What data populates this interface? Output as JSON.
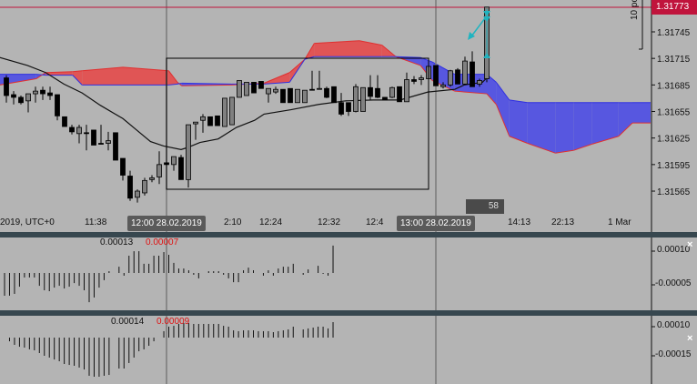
{
  "colors": {
    "background": "#b4b4b4",
    "cloud_bull": "#5757e0",
    "cloud_bear": "#e05555",
    "bull_candle": "#808080",
    "bear_candle": "#000000",
    "price_line": "#c0143c",
    "arrow": "#20b4c0",
    "separator": "#37474f"
  },
  "main": {
    "current_price_label": "1.31773",
    "ruler_label": "10 po",
    "bar_timer": "58",
    "crosshair_tips": [
      "12:00 28.02.2019",
      "13:00 28.02.2019"
    ],
    "x_labels": [
      "2019, UTC+0",
      "11:38",
      "2:10",
      "12:24",
      "12:32",
      "12:4",
      "14:13",
      "22:13",
      "1 Mar"
    ]
  },
  "panel1": {
    "value_a": "0.00013",
    "value_b": "0.00007",
    "y_labels": [
      "0.00010",
      "-0.00005"
    ]
  },
  "panel2": {
    "value_a": "0.00014",
    "value_b": "0.00009",
    "y_labels": [
      "0.00010",
      "-0.00015"
    ]
  },
  "chart_data": [
    {
      "type": "candlestick",
      "y_ticks": [
        "1.31745",
        "1.31715",
        "1.31685",
        "1.31655",
        "1.31625",
        "1.31595",
        "1.31565"
      ],
      "ylim": [
        1.31545,
        1.3178
      ],
      "current_price": 1.31773,
      "candles": [
        [
          1.31693,
          1.31696,
          1.31665,
          1.31673
        ],
        [
          1.31674,
          1.31678,
          1.31663,
          1.31671
        ],
        [
          1.31671,
          1.31673,
          1.31663,
          1.31665
        ],
        [
          1.31667,
          1.31675,
          1.31654,
          1.31675
        ],
        [
          1.31675,
          1.31683,
          1.31665,
          1.31678
        ],
        [
          1.31679,
          1.31683,
          1.31668,
          1.31675
        ],
        [
          1.31676,
          1.31683,
          1.31668,
          1.31673
        ],
        [
          1.31674,
          1.31674,
          1.31645,
          1.3165
        ],
        [
          1.31649,
          1.31649,
          1.31638,
          1.31638
        ],
        [
          1.31637,
          1.3164,
          1.31629,
          1.31632
        ],
        [
          1.3163,
          1.3164,
          1.31619,
          1.31637
        ],
        [
          1.31631,
          1.3164,
          1.31611,
          1.3163
        ],
        [
          1.31634,
          1.31634,
          1.31617,
          1.31617
        ],
        [
          1.31619,
          1.3164,
          1.31618,
          1.31618
        ],
        [
          1.31619,
          1.31632,
          1.31611,
          1.31622
        ],
        [
          1.31631,
          1.31631,
          1.316,
          1.316
        ],
        [
          1.31602,
          1.31602,
          1.31577,
          1.31583
        ],
        [
          1.31582,
          1.31588,
          1.31554,
          1.31557
        ],
        [
          1.31558,
          1.31567,
          1.31552,
          1.31565
        ],
        [
          1.31563,
          1.3158,
          1.3156,
          1.31577
        ],
        [
          1.31578,
          1.31583,
          1.31575,
          1.3158
        ],
        [
          1.31581,
          1.3161,
          1.31573,
          1.31595
        ],
        [
          1.31597,
          1.31597,
          1.31595,
          1.31595
        ],
        [
          1.31595,
          1.31604,
          1.31588,
          1.31604
        ],
        [
          1.31603,
          1.31606,
          1.31578,
          1.31578
        ],
        [
          1.31578,
          1.3164,
          1.31569,
          1.3164
        ],
        [
          1.31641,
          1.31643,
          1.31623,
          1.31643
        ],
        [
          1.31645,
          1.31652,
          1.31631,
          1.31649
        ],
        [
          1.31649,
          1.31649,
          1.31639,
          1.31639
        ],
        [
          1.3165,
          1.3165,
          1.31639,
          1.31639
        ],
        [
          1.31638,
          1.3167,
          1.31638,
          1.3167
        ],
        [
          1.3164,
          1.31671,
          1.3164,
          1.31671
        ],
        [
          1.31671,
          1.3169,
          1.31671,
          1.3169
        ],
        [
          1.31673,
          1.31688,
          1.31673,
          1.31688
        ],
        [
          1.31688,
          1.31688,
          1.31676,
          1.31676
        ],
        [
          1.31689,
          1.31689,
          1.31681,
          1.31681
        ],
        [
          1.31675,
          1.31681,
          1.31665,
          1.31681
        ],
        [
          1.31677,
          1.31683,
          1.31675,
          1.3168
        ],
        [
          1.3168,
          1.3168,
          1.31665,
          1.31665
        ],
        [
          1.31681,
          1.31681,
          1.31665,
          1.31665
        ],
        [
          1.31665,
          1.3168,
          1.31665,
          1.3168
        ],
        [
          1.31665,
          1.31679,
          1.31665,
          1.31679
        ],
        [
          1.3168,
          1.31701,
          1.31679,
          1.31679
        ],
        [
          1.31681,
          1.31701,
          1.31681,
          1.31681
        ],
        [
          1.31681,
          1.31683,
          1.3167,
          1.31671
        ],
        [
          1.31683,
          1.31683,
          1.31665,
          1.31665
        ],
        [
          1.31665,
          1.31676,
          1.3165,
          1.31652
        ],
        [
          1.31665,
          1.31665,
          1.3165,
          1.31655
        ],
        [
          1.31655,
          1.31686,
          1.31654,
          1.31683
        ],
        [
          1.31655,
          1.31682,
          1.31655,
          1.31682
        ],
        [
          1.31682,
          1.31696,
          1.31668,
          1.31672
        ],
        [
          1.31681,
          1.31696,
          1.3167,
          1.31671
        ],
        [
          1.31671,
          1.31671,
          1.31668,
          1.31668
        ],
        [
          1.31671,
          1.31683,
          1.3167,
          1.31682
        ],
        [
          1.31683,
          1.31683,
          1.31666,
          1.31666
        ],
        [
          1.31666,
          1.31699,
          1.31666,
          1.31691
        ],
        [
          1.31691,
          1.31695,
          1.31686,
          1.31689
        ],
        [
          1.31691,
          1.31696,
          1.31685,
          1.31693
        ],
        [
          1.31692,
          1.31707,
          1.3169,
          1.31706
        ],
        [
          1.31707,
          1.31707,
          1.31684,
          1.31684
        ],
        [
          1.31683,
          1.31688,
          1.31681,
          1.31685
        ],
        [
          1.31685,
          1.31702,
          1.31683,
          1.31701
        ],
        [
          1.31702,
          1.31704,
          1.31686,
          1.31686
        ],
        [
          1.31686,
          1.31717,
          1.31685,
          1.31712
        ],
        [
          1.31711,
          1.31723,
          1.31683,
          1.31683
        ],
        [
          1.31686,
          1.31692,
          1.31683,
          1.3169
        ],
        [
          1.31692,
          1.31773,
          1.31688,
          1.31773
        ]
      ],
      "ichimoku_cloud": {
        "bar": [
          -0.9,
          4.1,
          5.4,
          9.1,
          10.4,
          16,
          22.3,
          23.5,
          24.1,
          31,
          35.4,
          38.9,
          41,
          42.3,
          48.5,
          51.6,
          53.5,
          56.9,
          58.5,
          61.6,
          66,
          67.3,
          69.1,
          71.6,
          75.4,
          77.9,
          80.4,
          84.1,
          86,
          88.5
        ],
        "span_a": [
          1.31697,
          1.31697,
          1.31696,
          1.31696,
          1.31685,
          1.31685,
          1.31685,
          1.31686,
          1.31687,
          1.31686,
          1.31686,
          1.31688,
          1.31714,
          1.31717,
          1.31717,
          1.31717,
          1.31717,
          1.31716,
          1.31711,
          1.31697,
          1.31697,
          1.31688,
          1.31668,
          1.31665,
          1.31665,
          1.31665,
          1.31665,
          1.31665,
          1.31665,
          1.31665
        ],
        "span_b": [
          1.31685,
          1.31692,
          1.31699,
          1.317,
          1.31701,
          1.31705,
          1.31701,
          1.31688,
          1.31684,
          1.31685,
          1.31687,
          1.31699,
          1.31714,
          1.31732,
          1.31735,
          1.3173,
          1.31717,
          1.31707,
          1.3169,
          1.31678,
          1.31675,
          1.31663,
          1.31627,
          1.31619,
          1.31608,
          1.31611,
          1.31618,
          1.31627,
          1.31642,
          1.31642
        ]
      },
      "moving_average": {
        "bar": [
          -0.9,
          2.9,
          5.4,
          7.9,
          10.4,
          12.9,
          16,
          17.9,
          19.8,
          21.6,
          24,
          24.8,
          26.6,
          29.1,
          31.6,
          34.1,
          35.4,
          39.1,
          42.9,
          46.6,
          50.4,
          54.1,
          57.9,
          61.6,
          62.9,
          65.4,
          66
        ],
        "value": [
          1.31716,
          1.31707,
          1.31699,
          1.31686,
          1.31676,
          1.31662,
          1.31647,
          1.31634,
          1.31621,
          1.31616,
          1.31612,
          1.31614,
          1.3162,
          1.31624,
          1.31637,
          1.31645,
          1.31652,
          1.31657,
          1.31663,
          1.31667,
          1.31668,
          1.31668,
          1.31677,
          1.3168,
          1.31685,
          1.31688,
          1.31693
        ]
      }
    },
    {
      "type": "bar",
      "y_ticks": [
        "0.00010",
        "-0.00005"
      ],
      "values": [
        -0.000101,
        -0.000101,
        -9.3e-05,
        -6.1e-05,
        -2e-05,
        -2e-05,
        -2e-05,
        -5.7e-05,
        -7.7e-05,
        -8.1e-05,
        -6.5e-05,
        -5.7e-05,
        -6.9e-05,
        -6.1e-05,
        -4.5e-05,
        -5.7e-05,
        -7.7e-05,
        -0.00013,
        -0.000109,
        -6.5e-05,
        -3.2e-05,
        8e-06,
        0,
        2.8e-05,
        -1.2e-05,
        7.7e-05,
        9.7e-05,
        9.7e-05,
        4.1e-05,
        4.1e-05,
        7.7e-05,
        7.7e-05,
        9.3e-05,
        8.1e-05,
        4.5e-05,
        2e-05,
        2e-05,
        1.2e-05,
        -8e-06,
        -2.4e-05,
        0,
        8e-06,
        8e-06,
        8e-06,
        -8e-06,
        -2.4e-05,
        -4.1e-05,
        -4.1e-05,
        1.2e-05,
        2.4e-05,
        1.2e-05,
        0,
        -1.2e-05,
        1.2e-05,
        -1.2e-05,
        2e-05,
        2.8e-05,
        2.8e-05,
        4.1e-05,
        0,
        -8e-06,
        1.6e-05,
        0,
        3.2e-05,
        -4e-06,
        -1.2e-05,
        0.000122
      ]
    },
    {
      "type": "bar",
      "y_ticks": [
        "0.00010",
        "-0.00015"
      ],
      "values": [
        0,
        -3.1e-05,
        -6.1e-05,
        -7.7e-05,
        -8.4e-05,
        -9.9e-05,
        -0.000107,
        -0.00013,
        -0.000153,
        -0.000168,
        -0.000184,
        -0.000199,
        -0.000222,
        -0.00023,
        -0.000237,
        -0.000252,
        -0.000268,
        -0.000321,
        -0.000329,
        -0.000329,
        -0.000321,
        -0.000314,
        0,
        -0.00026,
        -0.00026,
        -0.000214,
        -0.000168,
        -0.000115,
        -9.9e-05,
        -6.9e-05,
        -3.1e-05,
        0,
        5.4e-05,
        9.2e-05,
        9.9e-05,
        0.000115,
        0.000122,
        0.000122,
        0.000115,
        0.000115,
        0.000115,
        0.000115,
        0.000115,
        0.000115,
        9.9e-05,
        9.2e-05,
        6.1e-05,
        5.4e-05,
        6.1e-05,
        6.1e-05,
        6.1e-05,
        5.4e-05,
        5.4e-05,
        5.4e-05,
        4.6e-05,
        5.4e-05,
        6.1e-05,
        6.9e-05,
        9.2e-05,
        0,
        6.9e-05,
        7.7e-05,
        8.4e-05,
        9.2e-05,
        9.2e-05,
        7.7e-05,
        0.00013
      ]
    }
  ]
}
